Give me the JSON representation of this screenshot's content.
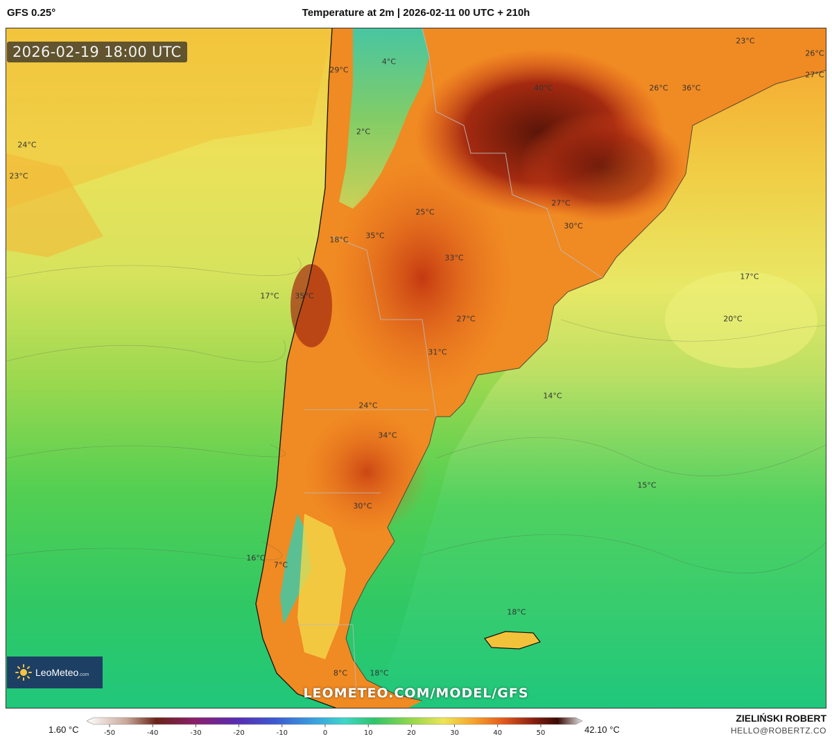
{
  "header": {
    "model": "GFS 0.25°",
    "title": "Temperature at 2m | 2026-02-11 00 UTC + 210h"
  },
  "map": {
    "valid_time": "2026-02-19 18:00 UTC",
    "temperature_labels": [
      "29°C",
      "4°C",
      "2°C",
      "24°C",
      "23°C",
      "40°C",
      "26°C",
      "36°C",
      "23°C",
      "26°C",
      "27°C",
      "25°C",
      "27°C",
      "30°C",
      "35°C",
      "18°C",
      "33°C",
      "17°C",
      "35°C",
      "17°C",
      "20°C",
      "27°C",
      "31°C",
      "24°C",
      "14°C",
      "34°C",
      "15°C",
      "30°C",
      "16°C",
      "7°C",
      "18°C",
      "18°C",
      "8°C"
    ],
    "site_url": "LEOMETEO.COM/MODEL/GFS",
    "logo_text": "LeoMeteo",
    "logo_suffix": ".com",
    "colors": {
      "ocean_green": "#3ccf63",
      "ocean_yellow": "#e9e35a",
      "land_orange": "#f08a22",
      "land_red": "#d9481c",
      "hot_dark": "#6b1e10",
      "andes_cyan": "#3fc9a8"
    }
  },
  "legend": {
    "min_label": "1.60 °C",
    "max_label": "42.10 °C",
    "ticks": [
      "-50",
      "-40",
      "-30",
      "-20",
      "-10",
      "0",
      "10",
      "20",
      "30",
      "40",
      "50"
    ]
  },
  "credits": {
    "author": "ZIELIŃSKI ROBERT",
    "email": "HELLO@ROBERTZ.CO"
  }
}
